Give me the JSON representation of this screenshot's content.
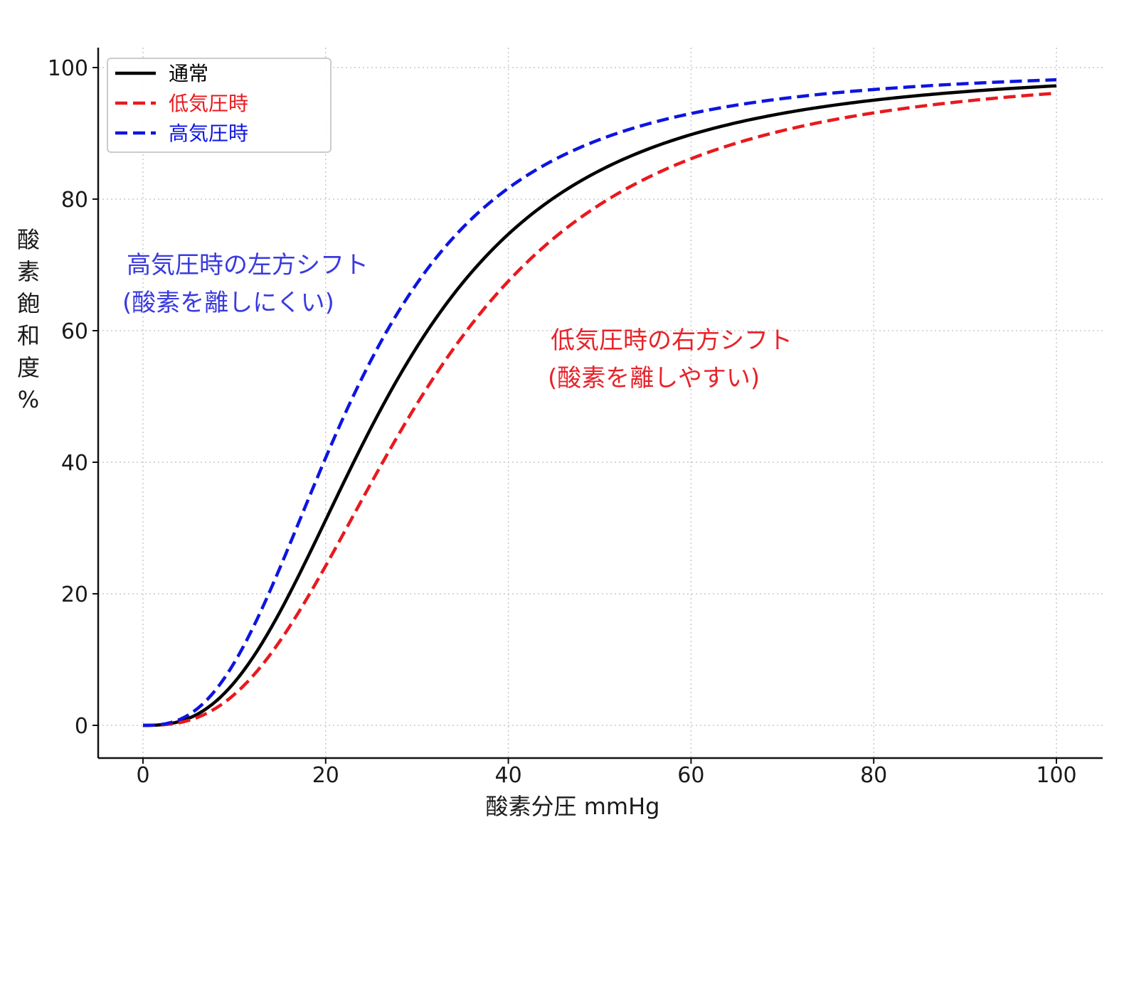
{
  "chart_data": {
    "type": "line",
    "title": "",
    "xlabel": "酸素分圧 mmHg",
    "ylabel": "酸素飽和度%",
    "xlim": [
      -5,
      105
    ],
    "ylim": [
      -5,
      103
    ],
    "xticks": [
      0,
      20,
      40,
      60,
      80,
      100
    ],
    "yticks": [
      0,
      20,
      40,
      60,
      80,
      100
    ],
    "grid": true,
    "legend_position": "top-left",
    "hill_n": 2.7,
    "series": [
      {
        "name": "通常",
        "color": "#000000",
        "dash": "solid",
        "p50": 26.8
      },
      {
        "name": "低気圧時",
        "color": "#e8191e",
        "dash": "dashed",
        "p50": 30.5
      },
      {
        "name": "高気圧時",
        "color": "#0d15e0",
        "dash": "dashed",
        "p50": 23.0
      }
    ],
    "annotations": [
      {
        "lines": [
          "高気圧時の左方シフト",
          "(酸素を離しにくい)"
        ],
        "color": "#3a3ae0"
      },
      {
        "lines": [
          "低気圧時の右方シフト",
          "(酸素を離しやすい)"
        ],
        "color": "#e8232a"
      }
    ]
  }
}
